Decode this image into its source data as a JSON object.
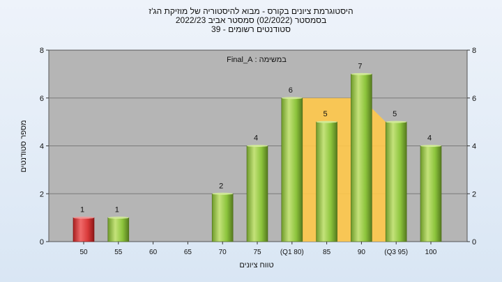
{
  "chart_data": {
    "type": "bar",
    "title_lines": [
      "היסטוגרמת ציונים בקורס - מבוא להיסטוריה של מוזיקת הג'ז",
      "בסמסטר  (02/2022)  סמסטר אביב 2022/23",
      "סטודנטים רשומים - 39"
    ],
    "annotation": "במשימה : Final_A",
    "xlabel": "טווח ציונים",
    "ylabel": "מספר סטודנטים",
    "ylim": [
      0,
      8
    ],
    "yticks": [
      0,
      2,
      4,
      6,
      8
    ],
    "categories": [
      "50",
      "55",
      "60",
      "65",
      "70",
      "75",
      "(Q1 80)",
      "85",
      "90",
      "(Q3 95)",
      "100"
    ],
    "values": [
      1,
      1,
      0,
      0,
      2,
      4,
      6,
      5,
      7,
      5,
      4
    ],
    "value_labels": [
      "1",
      "1",
      "",
      "",
      "2",
      "4",
      "6",
      "5",
      "7",
      "5",
      "4"
    ],
    "bar_colors": [
      "#d93a3a",
      "#8cc43c",
      "#8cc43c",
      "#8cc43c",
      "#8cc43c",
      "#8cc43c",
      "#8cc43c",
      "#8cc43c",
      "#8cc43c",
      "#8cc43c",
      "#8cc43c"
    ],
    "iqr_band": {
      "from_category": "(Q1 80)",
      "to_category": "(Q3 95)",
      "value": 6,
      "color": "#ffc84a"
    },
    "grid": true,
    "plot_background": "#b5b5b5"
  }
}
